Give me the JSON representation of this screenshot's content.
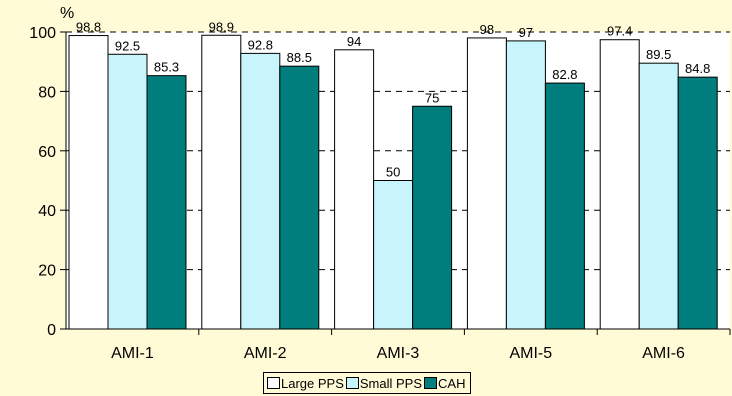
{
  "chart_data": {
    "type": "bar",
    "unit_label": "%",
    "categories": [
      "AMI-1",
      "AMI-2",
      "AMI-3",
      "AMI-5",
      "AMI-6"
    ],
    "series": [
      {
        "name": "Large PPS",
        "color": "#ffffff",
        "values": [
          98.8,
          98.9,
          94,
          98,
          97.4
        ]
      },
      {
        "name": "Small PPS",
        "color": "#c8f4fb",
        "values": [
          92.5,
          92.8,
          50,
          97,
          89.5
        ]
      },
      {
        "name": "CAH",
        "color": "#007d7d",
        "values": [
          85.3,
          88.5,
          75,
          82.8,
          84.8
        ]
      }
    ],
    "data_labels": [
      [
        "98.8",
        "98.9",
        "94",
        "98",
        "97.4"
      ],
      [
        "92.5",
        "92.8",
        "50",
        "97",
        "89.5"
      ],
      [
        "85.3",
        "88.5",
        "75",
        "82.8",
        "84.8"
      ]
    ],
    "yticks": [
      "0",
      "20",
      "40",
      "60",
      "80",
      "100"
    ],
    "ylim": [
      0,
      100
    ],
    "gridlines": "dashed",
    "legend_position": "bottom",
    "plot_background": "#ffffff"
  }
}
